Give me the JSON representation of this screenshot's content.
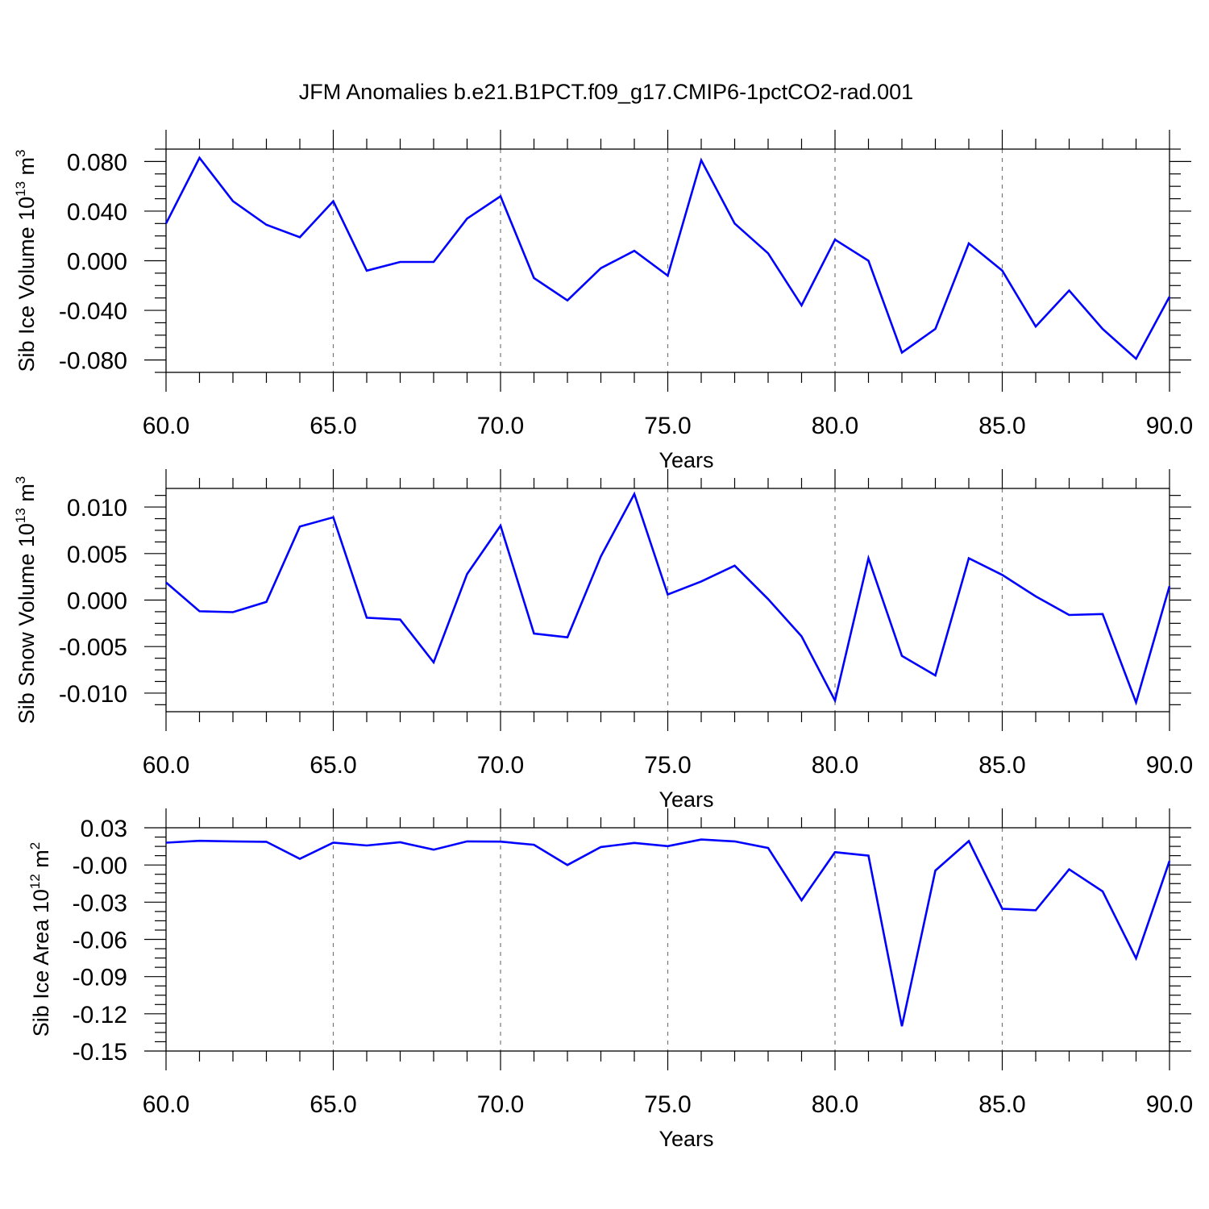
{
  "title": "JFM Anomalies b.e21.B1PCT.f09_g17.CMIP6-1pctCO2-rad.001",
  "line_color": "#0000ff",
  "chart_data": [
    {
      "type": "line",
      "xlabel": "Years",
      "ylabel": "Sib Ice Volume 10",
      "ylabel_exponent": "13",
      "ylabel_unit": "m",
      "ylabel_unit_exponent": "3",
      "xlim": [
        60,
        90
      ],
      "ylim": [
        -0.09,
        0.09
      ],
      "x_ticks": [
        60,
        65,
        70,
        75,
        80,
        85,
        90
      ],
      "x_tick_labels": [
        "60.0",
        "65.0",
        "70.0",
        "75.0",
        "80.0",
        "85.0",
        "90.0"
      ],
      "y_ticks": [
        0.08,
        0.04,
        0.0,
        -0.04,
        -0.08
      ],
      "y_tick_labels": [
        "0.080",
        "0.040",
        "0.000",
        "-0.040",
        "-0.080"
      ],
      "grid": "vertical-dashed",
      "x": [
        60,
        61,
        62,
        63,
        64,
        65,
        66,
        67,
        68,
        69,
        70,
        71,
        72,
        73,
        74,
        75,
        76,
        77,
        78,
        79,
        80,
        81,
        82,
        83,
        84,
        85,
        86,
        87,
        88,
        89,
        90
      ],
      "values": [
        0.03,
        0.083,
        0.048,
        0.029,
        0.019,
        0.048,
        -0.008,
        -0.001,
        -0.001,
        0.034,
        0.052,
        -0.014,
        -0.032,
        -0.006,
        0.008,
        -0.012,
        0.081,
        0.03,
        0.006,
        -0.036,
        0.017,
        0.0,
        -0.074,
        -0.055,
        0.014,
        -0.008,
        -0.053,
        -0.024,
        -0.055,
        -0.079,
        -0.029
      ]
    },
    {
      "type": "line",
      "xlabel": "Years",
      "ylabel": "Sib Snow Volume 10",
      "ylabel_exponent": "13",
      "ylabel_unit": "m",
      "ylabel_unit_exponent": "3",
      "xlim": [
        60,
        90
      ],
      "ylim": [
        -0.012,
        0.012
      ],
      "x_ticks": [
        60,
        65,
        70,
        75,
        80,
        85,
        90
      ],
      "x_tick_labels": [
        "60.0",
        "65.0",
        "70.0",
        "75.0",
        "80.0",
        "85.0",
        "90.0"
      ],
      "y_ticks": [
        0.01,
        0.005,
        0.0,
        -0.005,
        -0.01
      ],
      "y_tick_labels": [
        "0.010",
        "0.005",
        "0.000",
        "-0.005",
        "-0.010"
      ],
      "grid": "vertical-dashed",
      "x": [
        60,
        61,
        62,
        63,
        64,
        65,
        66,
        67,
        68,
        69,
        70,
        71,
        72,
        73,
        74,
        75,
        76,
        77,
        78,
        79,
        80,
        81,
        82,
        83,
        84,
        85,
        86,
        87,
        88,
        89,
        90
      ],
      "values": [
        0.0019,
        -0.0012,
        -0.0013,
        -0.0002,
        0.0079,
        0.0089,
        -0.0019,
        -0.0021,
        -0.0067,
        0.0028,
        0.008,
        -0.0036,
        -0.004,
        0.0047,
        0.0114,
        0.0006,
        0.002,
        0.0037,
        0.0001,
        -0.0039,
        -0.0108,
        0.0045,
        -0.006,
        -0.0081,
        0.0045,
        0.0027,
        0.0004,
        -0.0016,
        -0.0015,
        -0.011,
        0.0015
      ]
    },
    {
      "type": "line",
      "xlabel": "Years",
      "ylabel": "Sib Ice Area 10",
      "ylabel_exponent": "12",
      "ylabel_unit": "m",
      "ylabel_unit_exponent": "2",
      "xlim": [
        60,
        90
      ],
      "ylim": [
        -0.15,
        0.03
      ],
      "x_ticks": [
        60,
        65,
        70,
        75,
        80,
        85,
        90
      ],
      "x_tick_labels": [
        "60.0",
        "65.0",
        "70.0",
        "75.0",
        "80.0",
        "85.0",
        "90.0"
      ],
      "y_ticks": [
        0.03,
        0.0,
        -0.03,
        -0.06,
        -0.09,
        -0.12,
        -0.15
      ],
      "y_tick_labels": [
        "0.03",
        "-0.00",
        "-0.03",
        "-0.06",
        "-0.09",
        "-0.12",
        "-0.15"
      ],
      "grid": "vertical-dashed",
      "x": [
        60,
        61,
        62,
        63,
        64,
        65,
        66,
        67,
        68,
        69,
        70,
        71,
        72,
        73,
        74,
        75,
        76,
        77,
        78,
        79,
        80,
        81,
        82,
        83,
        84,
        85,
        86,
        87,
        88,
        89,
        90
      ],
      "values": [
        0.018,
        0.0195,
        0.019,
        0.0187,
        0.005,
        0.018,
        0.0157,
        0.0183,
        0.0123,
        0.019,
        0.0188,
        0.0163,
        0.0,
        0.0145,
        0.0178,
        0.0152,
        0.0205,
        0.019,
        0.0137,
        -0.0285,
        0.0103,
        0.0075,
        -0.13,
        -0.0045,
        0.0193,
        -0.0353,
        -0.0365,
        -0.0035,
        -0.0213,
        -0.0753,
        0.0032
      ]
    }
  ]
}
